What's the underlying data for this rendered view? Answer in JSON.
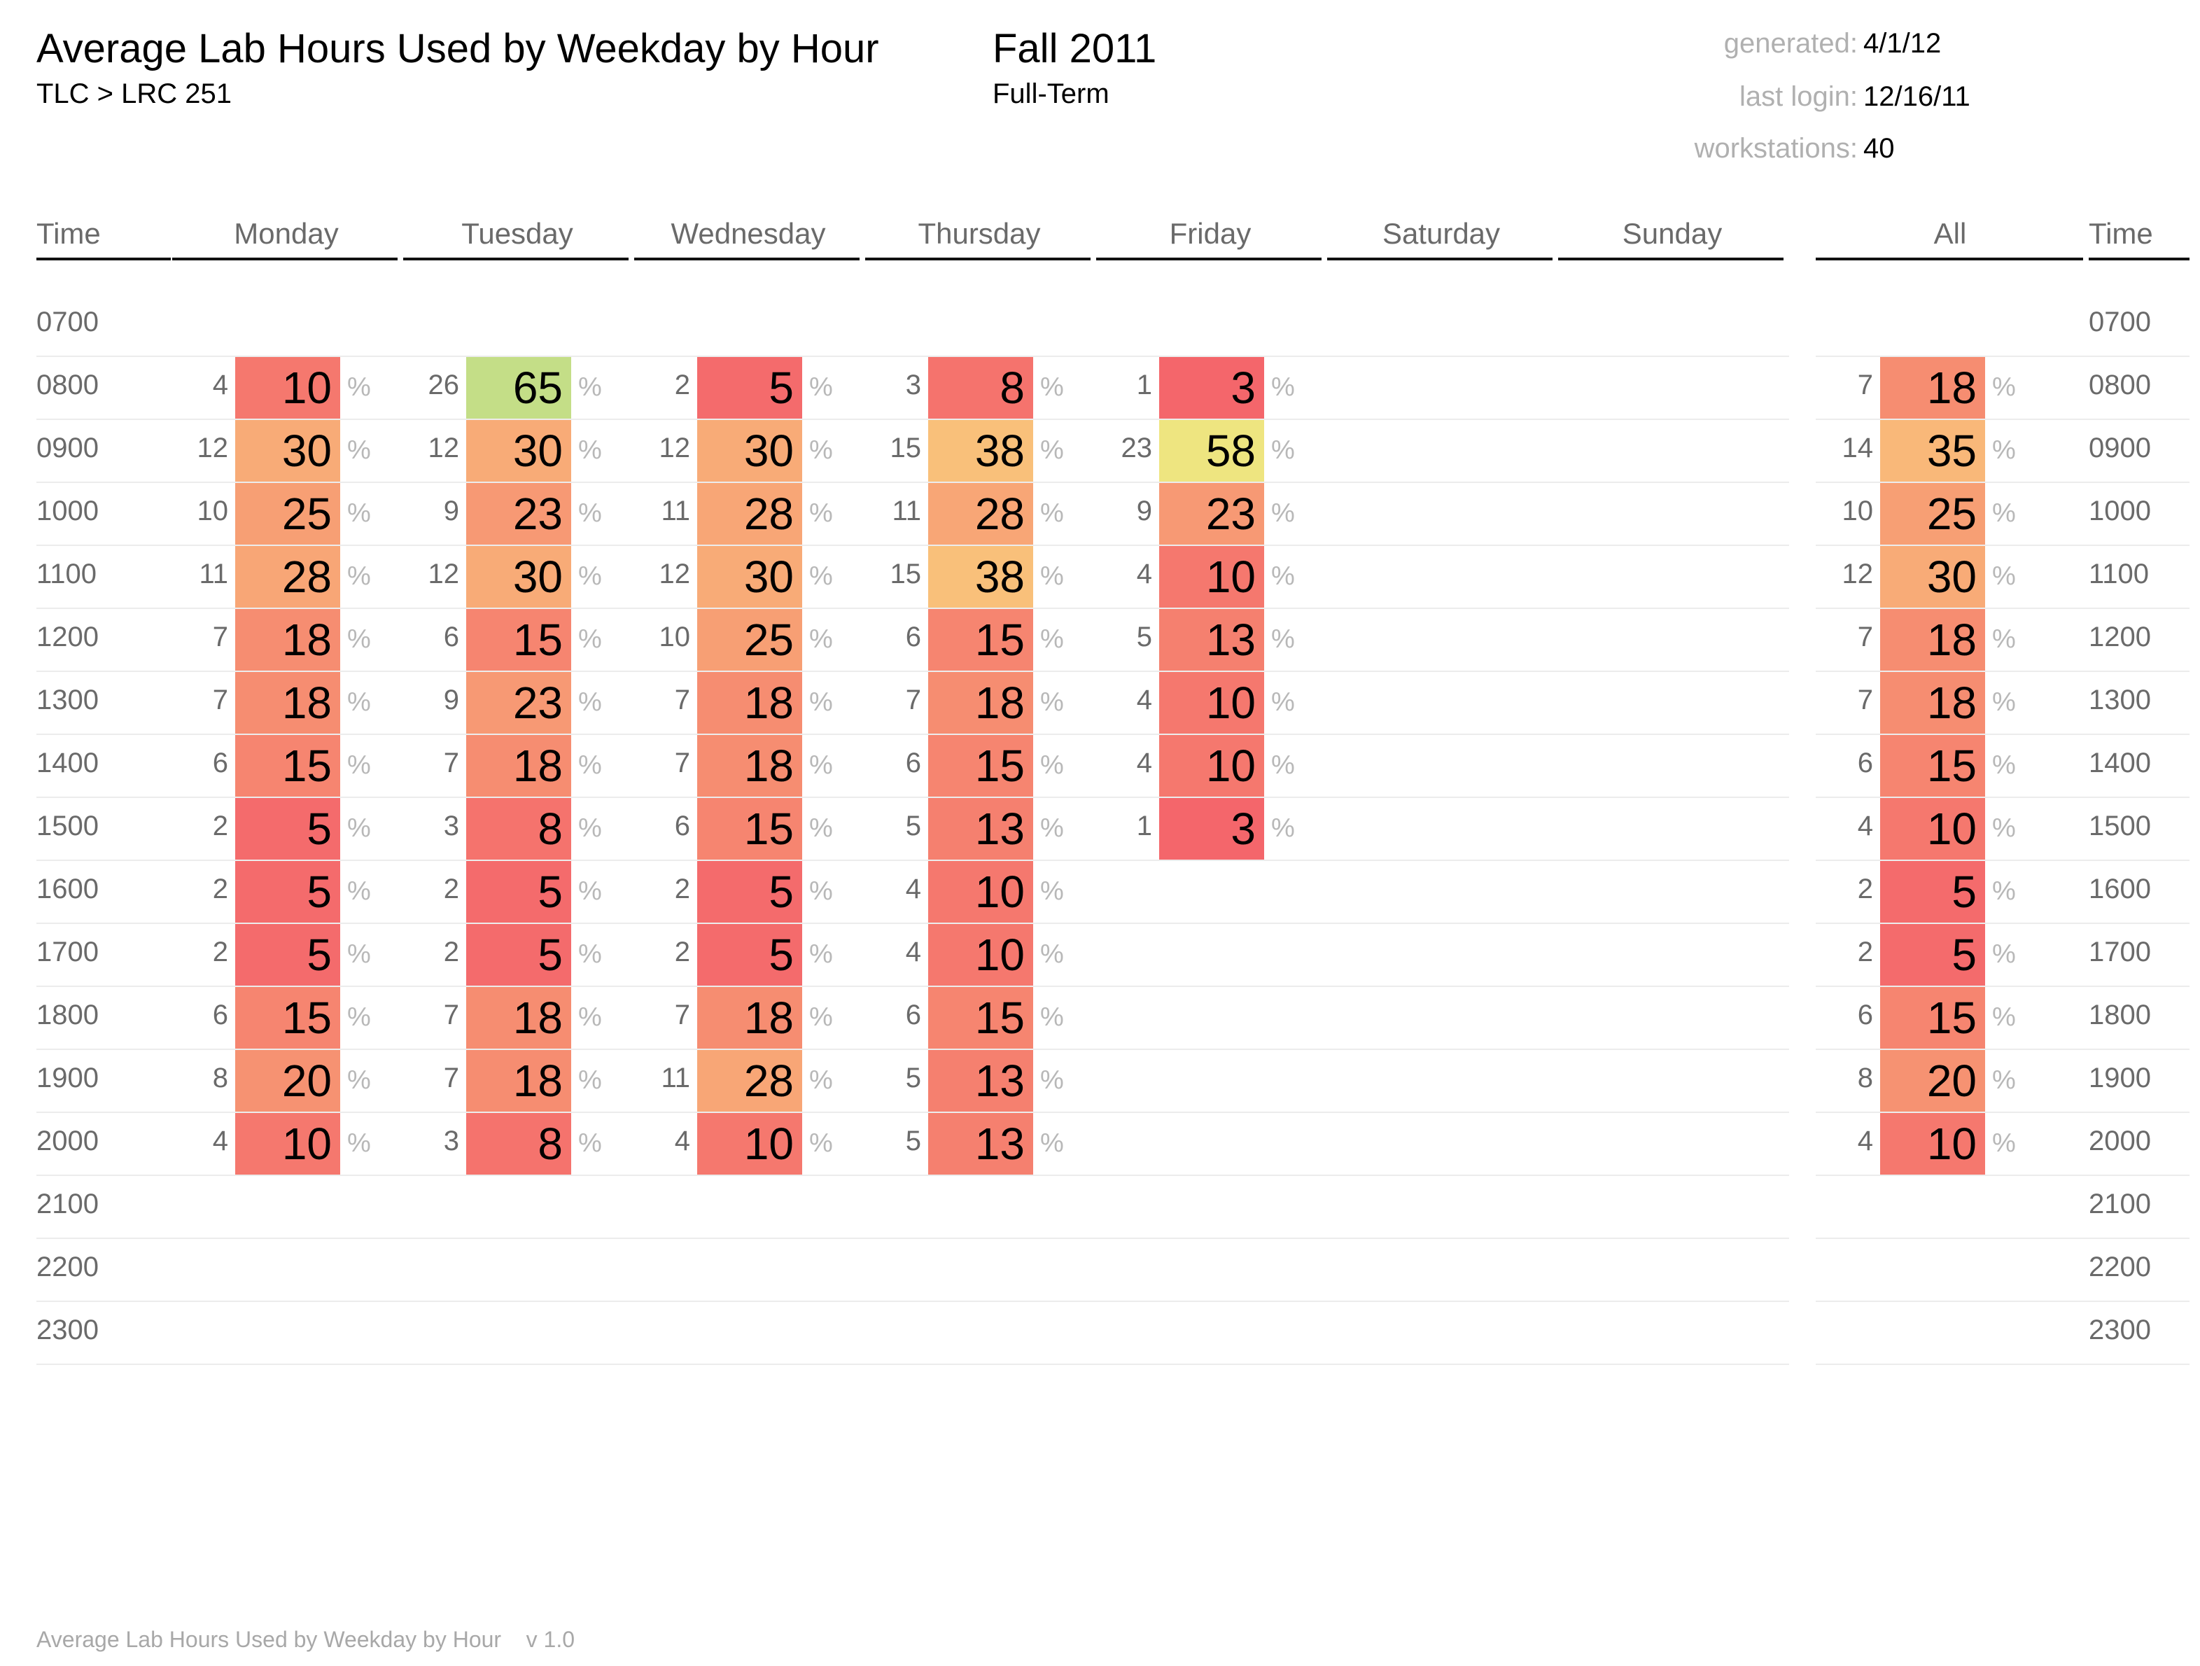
{
  "header": {
    "title": "Average Lab Hours Used by Weekday by Hour",
    "subtitle": "TLC > LRC 251",
    "term": "Fall 2011",
    "term_sub": "Full-Term",
    "meta": [
      {
        "label": "generated:",
        "value": "4/1/12"
      },
      {
        "label": "last login:",
        "value": "12/16/11"
      },
      {
        "label": "workstations:",
        "value": "40"
      }
    ]
  },
  "footer": {
    "text": "Average Lab Hours Used by Weekday by Hour",
    "version": "v 1.0"
  },
  "chart_data": {
    "type": "heatmap",
    "columns": [
      "Time",
      "Monday",
      "Tuesday",
      "Wednesday",
      "Thursday",
      "Friday",
      "Saturday",
      "Sunday",
      "All",
      "Time"
    ],
    "times": [
      "0700",
      "0800",
      "0900",
      "1000",
      "1100",
      "1200",
      "1300",
      "1400",
      "1500",
      "1600",
      "1700",
      "1800",
      "1900",
      "2000",
      "2100",
      "2200",
      "2300"
    ],
    "percent_symbol": "%",
    "days": [
      {
        "name": "Monday",
        "counts": [
          null,
          4,
          12,
          10,
          11,
          7,
          7,
          6,
          2,
          2,
          2,
          6,
          8,
          4,
          null,
          null,
          null
        ],
        "percents": [
          null,
          10,
          30,
          25,
          28,
          18,
          18,
          15,
          5,
          5,
          5,
          15,
          20,
          10,
          null,
          null,
          null
        ]
      },
      {
        "name": "Tuesday",
        "counts": [
          null,
          26,
          12,
          9,
          12,
          6,
          9,
          7,
          3,
          2,
          2,
          7,
          7,
          3,
          null,
          null,
          null
        ],
        "percents": [
          null,
          65,
          30,
          23,
          30,
          15,
          23,
          18,
          8,
          5,
          5,
          18,
          18,
          8,
          null,
          null,
          null
        ]
      },
      {
        "name": "Wednesday",
        "counts": [
          null,
          2,
          12,
          11,
          12,
          10,
          7,
          7,
          6,
          2,
          2,
          7,
          11,
          4,
          null,
          null,
          null
        ],
        "percents": [
          null,
          5,
          30,
          28,
          30,
          25,
          18,
          18,
          15,
          5,
          5,
          18,
          28,
          10,
          null,
          null,
          null
        ]
      },
      {
        "name": "Thursday",
        "counts": [
          null,
          3,
          15,
          11,
          15,
          6,
          7,
          6,
          5,
          4,
          4,
          6,
          5,
          5,
          null,
          null,
          null
        ],
        "percents": [
          null,
          8,
          38,
          28,
          38,
          15,
          18,
          15,
          13,
          10,
          10,
          15,
          13,
          13,
          null,
          null,
          null
        ]
      },
      {
        "name": "Friday",
        "counts": [
          null,
          1,
          23,
          9,
          4,
          5,
          4,
          4,
          1,
          null,
          null,
          null,
          null,
          null,
          null,
          null,
          null
        ],
        "percents": [
          null,
          3,
          58,
          23,
          10,
          13,
          10,
          10,
          3,
          null,
          null,
          null,
          null,
          null,
          null,
          null,
          null
        ]
      },
      {
        "name": "Saturday",
        "counts": [
          null,
          null,
          null,
          null,
          null,
          null,
          null,
          null,
          null,
          null,
          null,
          null,
          null,
          null,
          null,
          null,
          null
        ],
        "percents": [
          null,
          null,
          null,
          null,
          null,
          null,
          null,
          null,
          null,
          null,
          null,
          null,
          null,
          null,
          null,
          null,
          null
        ]
      },
      {
        "name": "Sunday",
        "counts": [
          null,
          null,
          null,
          null,
          null,
          null,
          null,
          null,
          null,
          null,
          null,
          null,
          null,
          null,
          null,
          null,
          null
        ],
        "percents": [
          null,
          null,
          null,
          null,
          null,
          null,
          null,
          null,
          null,
          null,
          null,
          null,
          null,
          null,
          null,
          null,
          null
        ]
      },
      {
        "name": "All",
        "counts": [
          null,
          7,
          14,
          10,
          12,
          7,
          7,
          6,
          4,
          2,
          2,
          6,
          8,
          4,
          null,
          null,
          null
        ],
        "percents": [
          null,
          18,
          35,
          25,
          30,
          18,
          18,
          15,
          10,
          5,
          5,
          15,
          20,
          10,
          null,
          null,
          null
        ]
      }
    ],
    "color_scale": {
      "low": "#f4666b",
      "mid": "#f9c07a",
      "high": "#c4de87"
    }
  }
}
